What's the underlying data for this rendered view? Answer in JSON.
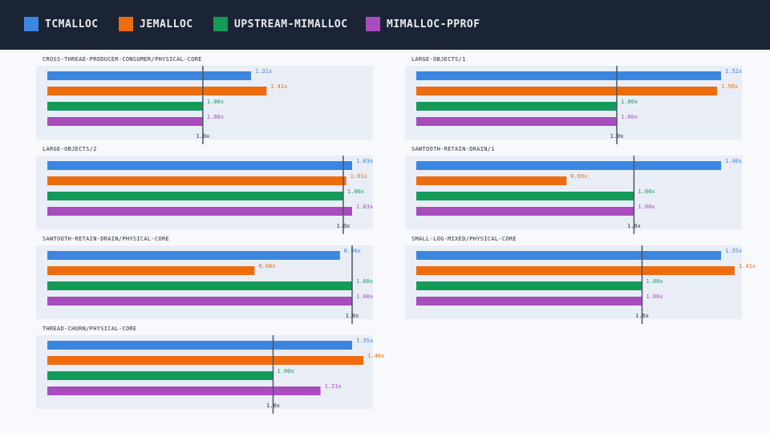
{
  "legend": [
    {
      "name": "tcmalloc",
      "color": "#3b86e0"
    },
    {
      "name": "jemalloc",
      "color": "#ef6c0e"
    },
    {
      "name": "upstream-mimalloc",
      "color": "#149b5a"
    },
    {
      "name": "mimalloc-pprof",
      "color": "#a94cbd"
    }
  ],
  "chart_data": [
    {
      "type": "bar",
      "title": "cross-thread-producer-consumer/physical-core",
      "series_values": [
        1.31,
        1.41,
        1.0,
        1.0
      ],
      "labels": [
        "1.31x",
        "1.41x",
        "1.00x",
        "1.00x"
      ],
      "xlim": [
        0,
        1.96
      ],
      "reference": 1.0,
      "reference_label": "1.0x"
    },
    {
      "type": "bar",
      "title": "large-objects/1",
      "series_values": [
        1.52,
        1.5,
        1.0,
        1.0
      ],
      "labels": [
        "1.52x",
        "1.50x",
        "1.00x",
        "1.00x"
      ],
      "xlim": [
        0,
        1.52
      ],
      "reference": 1.0,
      "reference_label": "1.0x"
    },
    {
      "type": "bar",
      "title": "large-objects/2",
      "series_values": [
        1.03,
        1.01,
        1.0,
        1.03
      ],
      "labels": [
        "1.03x",
        "1.01x",
        "1.00x",
        "1.03x"
      ],
      "xlim": [
        0,
        1.03
      ],
      "reference": 1.0,
      "reference_label": "1.0x"
    },
    {
      "type": "bar",
      "title": "sawtooth-retain-drain/1",
      "series_values": [
        1.4,
        0.69,
        1.0,
        1.0
      ],
      "labels": [
        "1.40x",
        "0.69x",
        "1.00x",
        "1.00x"
      ],
      "xlim": [
        0,
        1.4
      ],
      "reference": 1.0,
      "reference_label": "1.0x"
    },
    {
      "type": "bar",
      "title": "sawtooth-retain-drain/physical-core",
      "series_values": [
        0.96,
        0.68,
        1.0,
        1.0
      ],
      "labels": [
        "0.96x",
        "0.68x",
        "1.00x",
        "1.00x"
      ],
      "xlim": [
        0,
        1.0
      ],
      "reference": 1.0,
      "reference_label": "1.0x"
    },
    {
      "type": "bar",
      "title": "small-log-mixed/physical-core",
      "series_values": [
        1.35,
        1.41,
        1.0,
        1.0
      ],
      "labels": [
        "1.35x",
        "1.41x",
        "1.00x",
        "1.00x"
      ],
      "xlim": [
        0,
        1.35
      ],
      "reference": 1.0,
      "reference_label": "1.0x"
    },
    {
      "type": "bar",
      "title": "thread-churn/physical-core",
      "series_values": [
        1.35,
        1.4,
        1.0,
        1.21
      ],
      "labels": [
        "1.35x",
        "1.40x",
        "1.00x",
        "1.21x"
      ],
      "xlim": [
        0,
        1.35
      ],
      "reference": 1.0,
      "reference_label": "1.0x"
    }
  ]
}
